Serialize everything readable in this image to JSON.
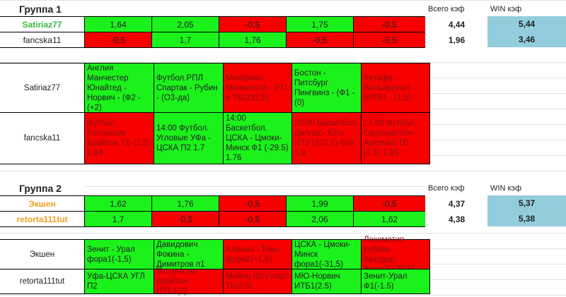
{
  "groups": [
    {
      "title": "Группа 1",
      "total_label": "Всего кэф",
      "win_label": "WIN кэф",
      "players": [
        {
          "name": "Satiriaz77",
          "name_color": "#3cb83c",
          "odds": [
            "1,64",
            "2,05",
            "-0,5",
            "1,75",
            "-0,5"
          ],
          "results": [
            "g",
            "g",
            "r",
            "g",
            "r"
          ],
          "total": "4,44",
          "win": "5,44"
        },
        {
          "name": "fancska11",
          "name_color": "#222222",
          "odds": [
            "-0,5",
            "1,7",
            "1,76",
            "-0,5",
            "-0,5"
          ],
          "results": [
            "r",
            "g",
            "g",
            "r",
            "r"
          ],
          "total": "1,96",
          "win": "3,46"
        }
      ],
      "bets": [
        {
          "name": "Satiriaz77",
          "items": [
            "Англия Манчестер Юнайтед - Норвич - (Ф2 - (+2)",
            "Футбол.РПЛ Спартак - Рубин - (О3-да)",
            "Мемфмис - Миннесота - (П1 и ТБ(232,5)",
            "Бостон - Питсбург Пингвинз - (Ф1 - (0)",
            "Хетафе - Вильярреал - (ИТБ1 - (1,5)"
          ],
          "results": [
            "g",
            "g",
            "r",
            "g",
            "r"
          ]
        },
        {
          "name": "fancska11",
          "items": [
            "Футбол. Тоттенхэм - Брайтон ТБ (2.5) 1.84",
            "14:00 Футбол. Угловые УФа - ЦСКА П2 1.7",
            "14:00 Баскетбол. ЦСКА - Цмоки-Минск Ф1 (-29.5) 1.76",
            "20:00 Баскетбол. Даллас- Юта ИТ2 (107.5) бол 1.9",
            "17:00 Футбол. Саутгемптон - Арсенал ТБ (2.5) 1.85"
          ],
          "results": [
            "r",
            "g",
            "g",
            "r",
            "r"
          ]
        }
      ]
    },
    {
      "title": "Группа 2",
      "total_label": "Всего кэф",
      "win_label": "WIN кэф",
      "players": [
        {
          "name": "Экшен",
          "name_color": "#f0a020",
          "odds": [
            "1,62",
            "1,76",
            "-0,5",
            "1,99",
            "-0,5"
          ],
          "results": [
            "g",
            "g",
            "r",
            "g",
            "r"
          ],
          "total": "4,37",
          "win": "5,37"
        },
        {
          "name": "retorta111tut",
          "name_color": "#f0a020",
          "odds": [
            "1,7",
            "-0,5",
            "-0,5",
            "2,06",
            "1,62"
          ],
          "results": [
            "g",
            "r",
            "r",
            "g",
            "g"
          ],
          "total": "4,38",
          "win": "5,38"
        }
      ],
      "bets": [
        {
          "name": "Экшен",
          "items": [
            "Зенит - Урал фора1(-1,5)",
            "Давидович Фокина - Димитров п1",
            "Алания - Томь фора2(+1,5)",
            "ЦСКА - Цмоки-Минск фора1(-31,5)",
            "Локомотив-Кубань - Автодор фора2(+20,5)"
          ],
          "results": [
            "g",
            "g",
            "r",
            "g",
            "r"
          ]
        },
        {
          "name": "retorta111tut",
          "items": [
            "Уфа-ЦСКА УГЛ П2",
            "Тоттенхэм-Брайтон ИТБ1(2)",
            "Майнц-Штутгарт ТБ(2.5)",
            "МЮ-Норвич ИТБ1(2.5)",
            "Зенит-Урал Ф1(-1.5)"
          ],
          "results": [
            "g",
            "r",
            "r",
            "g",
            "g"
          ]
        }
      ]
    }
  ]
}
